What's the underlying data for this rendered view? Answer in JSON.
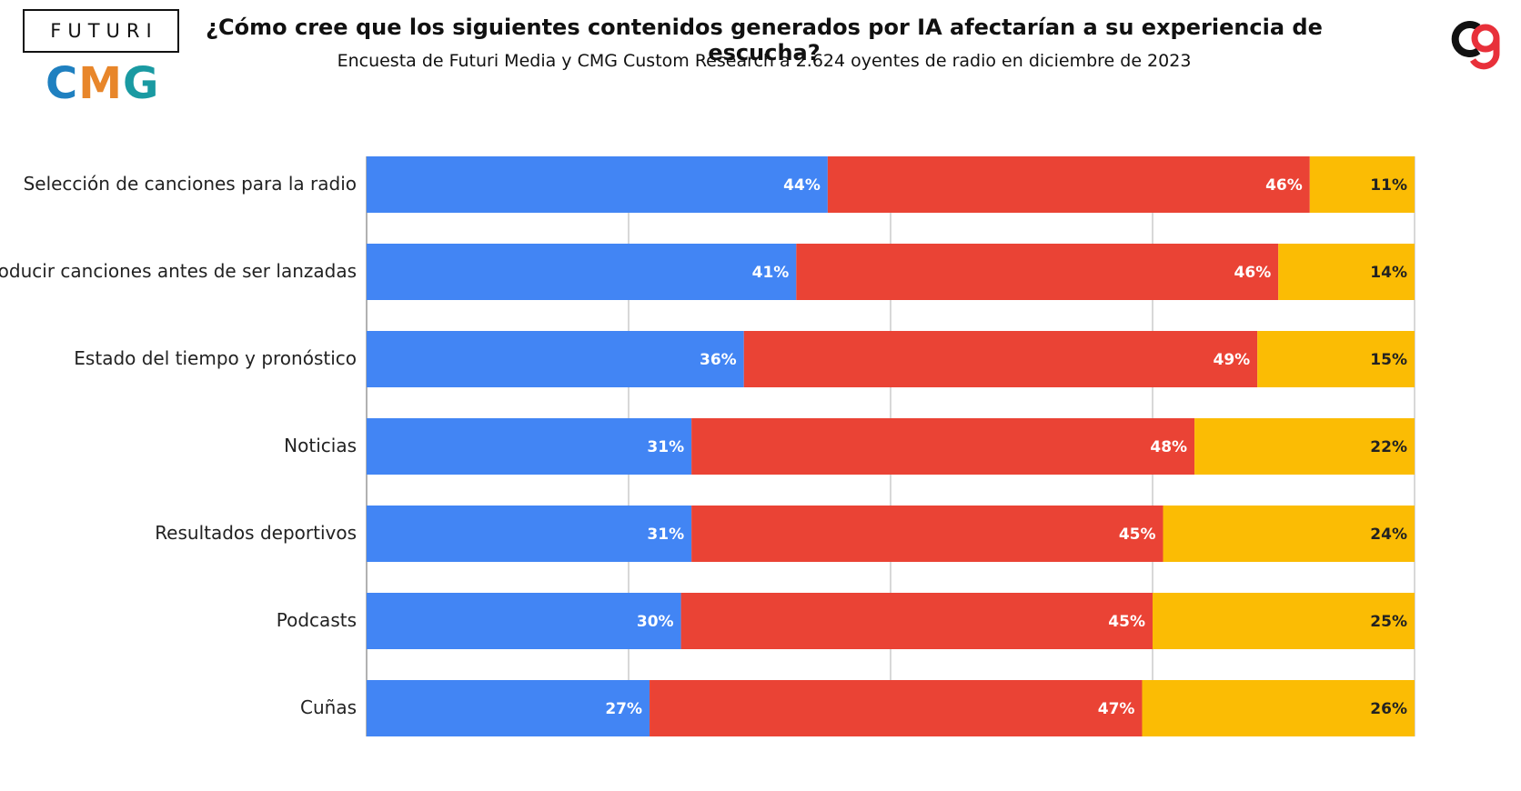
{
  "header": {
    "title": "¿Cómo cree que los siguientes contenidos generados por IA afectarían a su experiencia de escucha?",
    "subtitle": "Encuesta de Futuri Media y CMG Custom Research a 2.624 oyentes de radio en diciembre de 2023"
  },
  "logos": {
    "futuri": "FUTURI",
    "cmg_c": "C",
    "cmg_m": "M",
    "cmg_g": "G"
  },
  "colors": {
    "blue": "#4285f4",
    "red": "#ea4335",
    "yellow": "#fbbc04",
    "gridline": "#cccccc",
    "cg_black": "#111111",
    "cg_red": "#e8303a"
  },
  "chart_data": {
    "type": "bar",
    "orientation": "horizontal",
    "stacked": true,
    "categories": [
      "Selección de canciones para la radio",
      "Introducir canciones antes de ser lanzadas",
      "Estado del tiempo y pronóstico",
      "Noticias",
      "Resultados deportivos",
      "Podcasts",
      "Cuñas"
    ],
    "series": [
      {
        "color": "#4285f4",
        "values": [
          44,
          41,
          36,
          31,
          31,
          30,
          27
        ]
      },
      {
        "color": "#ea4335",
        "values": [
          46,
          46,
          49,
          48,
          45,
          45,
          47
        ]
      },
      {
        "color": "#fbbc04",
        "values": [
          11,
          14,
          15,
          22,
          24,
          25,
          26
        ]
      }
    ],
    "data_label_suffix": "%",
    "xlim": [
      0,
      100
    ],
    "gridlines": true,
    "legend": "none"
  }
}
